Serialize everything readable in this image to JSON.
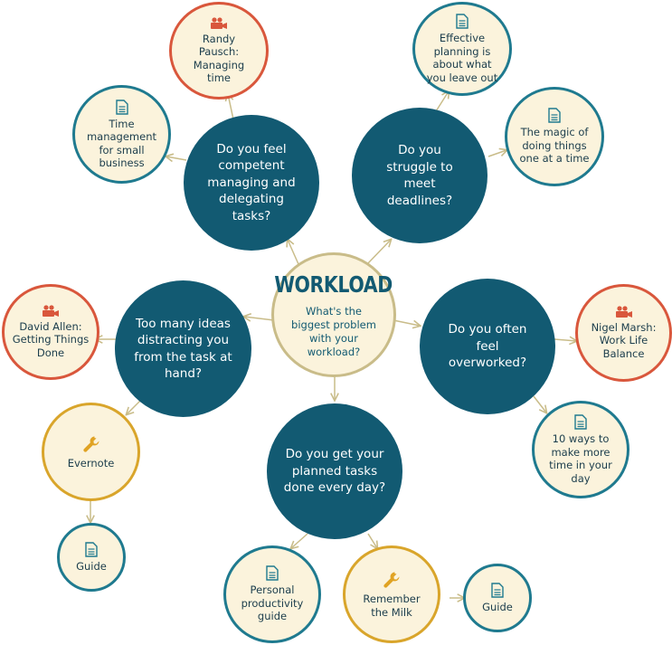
{
  "center": {
    "title": "WORKLOAD",
    "subtitle": "What's the biggest problem with your workload?"
  },
  "questions": {
    "managing": "Do you feel competent managing and delegating tasks?",
    "deadlines": "Do you struggle to meet deadlines?",
    "ideas": "Too many ideas distracting you from the task at hand?",
    "overworked": "Do you often feel overworked?",
    "planned": "Do you get your planned tasks done every day?"
  },
  "resources": {
    "randy_pausch": {
      "label": "Randy Pausch: Managing time",
      "icon": "video-camera-icon"
    },
    "time_management": {
      "label": "Time management for small business",
      "icon": "document-icon"
    },
    "effective_planning": {
      "label": "Effective planning is about what you leave out",
      "icon": "document-icon"
    },
    "magic_of_doing": {
      "label": "The magic of doing things one at a time",
      "icon": "document-icon"
    },
    "david_allen": {
      "label": "David Allen: Getting Things Done",
      "icon": "video-camera-icon"
    },
    "evernote": {
      "label": "Evernote",
      "icon": "wrench-icon"
    },
    "evernote_guide": {
      "label": "Guide",
      "icon": "document-icon"
    },
    "nigel_marsh": {
      "label": "Nigel Marsh: Work Life Balance",
      "icon": "video-camera-icon"
    },
    "ten_ways": {
      "label": "10 ways to make more time in your day",
      "icon": "document-icon"
    },
    "personal_productivity": {
      "label": "Personal productivity guide",
      "icon": "document-icon"
    },
    "remember_milk": {
      "label": "Remember the Milk",
      "icon": "wrench-icon"
    },
    "milk_guide": {
      "label": "Guide",
      "icon": "document-icon"
    }
  },
  "colors": {
    "question_fill": "#125a72",
    "resource_fill": "#fbf3dc",
    "document_border": "#1f7a8f",
    "video_border": "#d9573c",
    "tool_border": "#d9a52b",
    "connector": "#c9bc89"
  }
}
